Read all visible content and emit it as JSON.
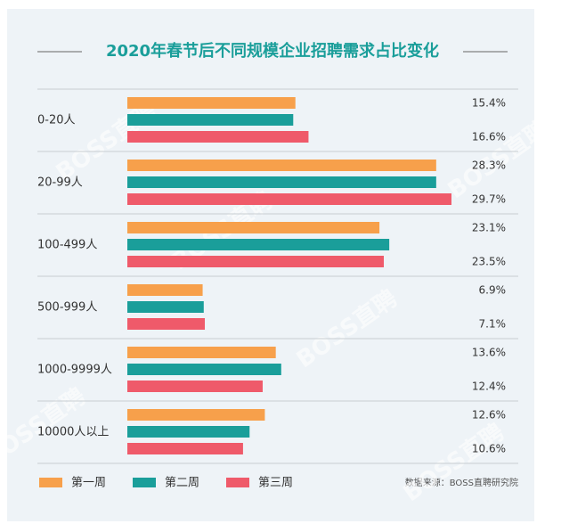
{
  "chart_data": {
    "type": "bar",
    "orientation": "horizontal",
    "title": "2020年春节后不同规模企业招聘需求占比变化",
    "categories": [
      "0-20人",
      "20-99人",
      "100-499人",
      "500-999人",
      "1000-9999人",
      "10000人以上"
    ],
    "series": [
      {
        "name": "第一周",
        "color": "#f7a04b",
        "values": [
          15.4,
          28.3,
          23.1,
          6.9,
          13.6,
          12.6
        ],
        "value_labels": [
          "15.4%",
          "28.3%",
          "23.1%",
          "6.9%",
          "13.6%",
          "12.6%"
        ]
      },
      {
        "name": "第二周",
        "color": "#1a9e9a",
        "values": [
          15.2,
          28.3,
          24.0,
          7.0,
          14.1,
          11.2
        ]
      },
      {
        "name": "第三周",
        "color": "#ef5a6a",
        "values": [
          16.6,
          29.7,
          23.5,
          7.1,
          12.4,
          10.6
        ],
        "value_labels": [
          "16.6%",
          "29.7%",
          "23.5%",
          "7.1%",
          "12.4%",
          "10.6%"
        ]
      }
    ],
    "source": "数据来源：BOSS直聘研究院",
    "watermark": "BOSS直聘",
    "legend": "bottom"
  }
}
